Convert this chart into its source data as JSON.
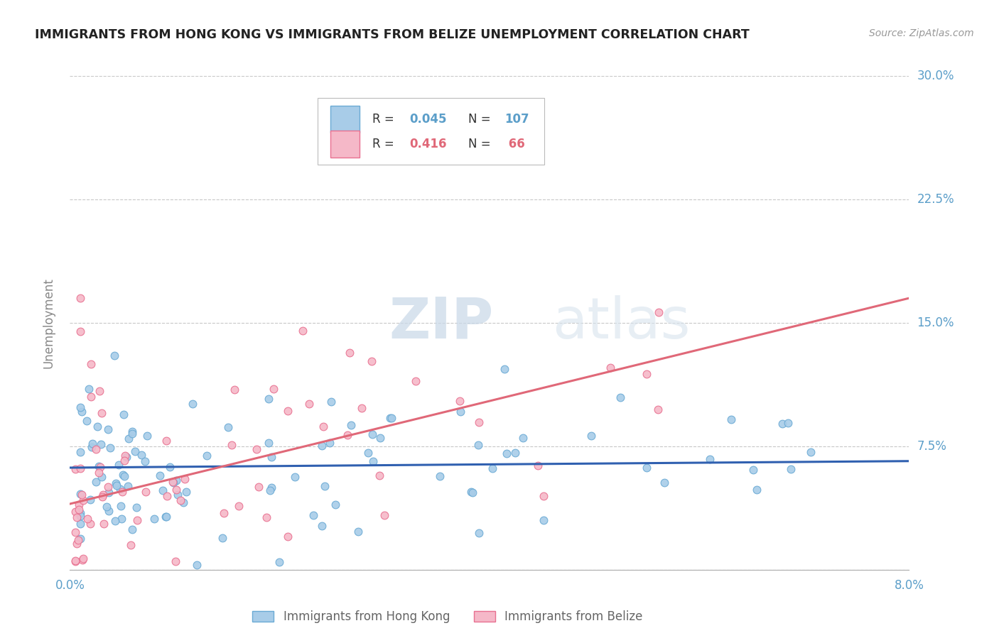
{
  "title": "IMMIGRANTS FROM HONG KONG VS IMMIGRANTS FROM BELIZE UNEMPLOYMENT CORRELATION CHART",
  "source": "Source: ZipAtlas.com",
  "ylabel": "Unemployment",
  "xlim": [
    0.0,
    0.08
  ],
  "ylim": [
    -0.02,
    0.3
  ],
  "plot_ylim": [
    0.0,
    0.3
  ],
  "yticks": [
    0.0,
    0.075,
    0.15,
    0.225,
    0.3
  ],
  "ytick_labels": [
    "",
    "7.5%",
    "15.0%",
    "22.5%",
    "30.0%"
  ],
  "xticks": [
    0.0,
    0.08
  ],
  "xtick_labels": [
    "0.0%",
    "8.0%"
  ],
  "background_color": "#ffffff",
  "grid_color": "#c8c8c8",
  "hk_color": "#a8cce8",
  "hk_edge": "#6aaad4",
  "bz_color": "#f5b8c8",
  "bz_edge": "#e87090",
  "hk_trend_color": "#3060b0",
  "bz_trend_color": "#e06878",
  "hk_name": "Immigrants from Hong Kong",
  "bz_name": "Immigrants from Belize",
  "hk_R": "0.045",
  "hk_N": "107",
  "bz_R": "0.416",
  "bz_N": "66",
  "R_color": "#333333",
  "hk_val_color": "#5b9ec9",
  "bz_val_color": "#e06878",
  "tick_color": "#5b9ec9",
  "title_color": "#222222",
  "source_color": "#999999",
  "watermark_color": "#e0e8f0",
  "legend_box_color": "#dddddd",
  "hk_trend_x": [
    0.0,
    0.08
  ],
  "hk_trend_y": [
    0.062,
    0.066
  ],
  "bz_trend_x": [
    0.0,
    0.08
  ],
  "bz_trend_y": [
    0.04,
    0.165
  ]
}
